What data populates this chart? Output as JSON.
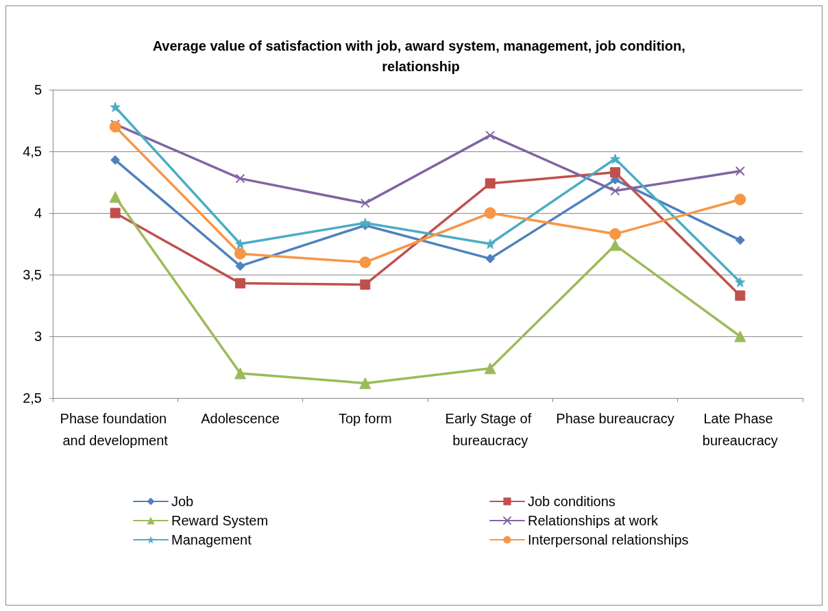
{
  "chart_data": {
    "type": "line",
    "title": "Average value of satisfaction with job, award system, management, job condition, relationship",
    "categories": [
      "Phase foundation and development",
      "Adolescence",
      "Top form",
      "Early Stage of bureaucracy",
      "Phase bureaucracy",
      "Late Phase bureaucracy"
    ],
    "ylim": [
      2.5,
      5
    ],
    "yticks": [
      {
        "value": 2.5,
        "label": "2,5"
      },
      3,
      {
        "value": 3.5,
        "label": "3,5"
      },
      4,
      {
        "value": 4.5,
        "label": "4,5"
      },
      5
    ],
    "grid": "y",
    "legend": "bottom",
    "line_style": "solid",
    "series": [
      {
        "name": "Job",
        "color": "#4f81bd",
        "marker": "diamond",
        "values": [
          4.43,
          3.57,
          3.9,
          3.63,
          4.27,
          3.78
        ]
      },
      {
        "name": "Job conditions",
        "color": "#c0504d",
        "marker": "square",
        "values": [
          4.0,
          3.43,
          3.42,
          4.24,
          4.33,
          3.33
        ]
      },
      {
        "name": "Reward System",
        "color": "#9bbb59",
        "marker": "triangle",
        "values": [
          4.13,
          2.7,
          2.62,
          2.74,
          3.74,
          3.0
        ]
      },
      {
        "name": "Relationships at work",
        "color": "#8064a2",
        "marker": "cross",
        "values": [
          4.72,
          4.28,
          4.08,
          4.63,
          4.18,
          4.34
        ]
      },
      {
        "name": "Management",
        "color": "#4bacc6",
        "marker": "star",
        "values": [
          4.86,
          3.75,
          3.92,
          3.75,
          4.44,
          3.44
        ]
      },
      {
        "name": "Interpersonal relationships",
        "color": "#f79646",
        "marker": "circle",
        "values": [
          4.7,
          3.67,
          3.6,
          4.0,
          3.83,
          4.11
        ]
      }
    ]
  }
}
